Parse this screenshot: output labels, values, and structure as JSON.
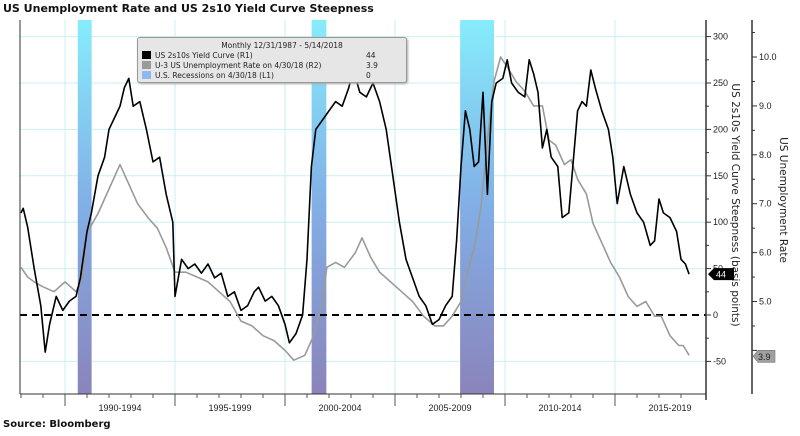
{
  "title": "US Unemployment Rate and US 2s10 Yield Curve Steepness",
  "source": "Source: Bloomberg",
  "legend": {
    "header": "Monthly 12/31/1987 - 5/14/2018",
    "entries": [
      {
        "label": "US 2s10s Yield Curve (R1)",
        "value": "44",
        "color": "#000000"
      },
      {
        "label": "U-3 US Unemployment Rate on 4/30/18 (R2)",
        "value": "3.9",
        "color": "#9a9a9a"
      },
      {
        "label": "U.S. Recessions on 4/30/18 (L1)",
        "value": "0",
        "color": "#8fb8f0"
      }
    ]
  },
  "chart_data": {
    "type": "line",
    "title": "US Unemployment Rate and US 2s10 Yield Curve Steepness",
    "x_range": [
      1988.0,
      2018.37
    ],
    "x_tick_labels": [
      "1990-1994",
      "1995-1999",
      "2000-2004",
      "2005-2009",
      "2010-2014",
      "2015-2019"
    ],
    "y1": {
      "label": "US 2s10s Yield Curve Steepness (basis points)",
      "range": [
        -85,
        318
      ],
      "ticks": [
        -50,
        0,
        50,
        100,
        150,
        200,
        250,
        300
      ],
      "tick_labels": [
        "-50",
        "0",
        "50",
        "100",
        "150",
        "200",
        "250",
        "300"
      ]
    },
    "y2": {
      "label": "US Unemployment Rate",
      "range": [
        3.4,
        11.3
      ],
      "ticks": [
        4,
        5,
        6,
        7,
        8,
        9,
        10
      ],
      "tick_labels": [
        "4.0",
        "5.0",
        "6.0",
        "7.0",
        "8.0",
        "9.0",
        "10.0"
      ]
    },
    "grid": true,
    "reference_line": {
      "axis": "y1",
      "value": 0,
      "style": "dashed"
    },
    "recessions": [
      [
        1990.58,
        1991.21
      ],
      [
        2001.21,
        2001.88
      ],
      [
        2007.96,
        2009.5
      ]
    ],
    "series": [
      {
        "name": "US 2s10s Yield Curve (R1)",
        "axis": "y1",
        "color": "#000000",
        "last_value": "44",
        "x": [
          1988.0,
          1988.1,
          1988.3,
          1988.6,
          1988.9,
          1989.1,
          1989.3,
          1989.6,
          1989.9,
          1990.2,
          1990.5,
          1990.7,
          1991.0,
          1991.2,
          1991.5,
          1991.8,
          1992.0,
          1992.3,
          1992.5,
          1992.7,
          1992.9,
          1993.1,
          1993.4,
          1993.7,
          1994.0,
          1994.3,
          1994.6,
          1994.9,
          1995.0,
          1995.3,
          1995.6,
          1995.9,
          1996.2,
          1996.5,
          1996.8,
          1997.1,
          1997.4,
          1997.7,
          1998.0,
          1998.3,
          1998.6,
          1998.8,
          1999.1,
          1999.4,
          1999.7,
          2000.0,
          2000.2,
          2000.5,
          2000.8,
          2001.0,
          2001.2,
          2001.4,
          2001.7,
          2002.0,
          2002.3,
          2002.6,
          2002.9,
          2003.1,
          2003.4,
          2003.7,
          2004.0,
          2004.3,
          2004.6,
          2004.9,
          2005.2,
          2005.5,
          2005.8,
          2006.1,
          2006.4,
          2006.7,
          2007.0,
          2007.3,
          2007.6,
          2007.8,
          2008.0,
          2008.2,
          2008.4,
          2008.6,
          2008.8,
          2009.0,
          2009.2,
          2009.4,
          2009.6,
          2009.9,
          2010.1,
          2010.3,
          2010.6,
          2010.9,
          2011.1,
          2011.3,
          2011.5,
          2011.7,
          2011.9,
          2012.1,
          2012.4,
          2012.6,
          2012.9,
          2013.1,
          2013.3,
          2013.5,
          2013.7,
          2013.9,
          2014.1,
          2014.4,
          2014.7,
          2014.9,
          2015.1,
          2015.4,
          2015.7,
          2016.0,
          2016.3,
          2016.6,
          2016.8,
          2017.0,
          2017.2,
          2017.5,
          2017.8,
          2018.0,
          2018.2,
          2018.37
        ],
        "y": [
          110,
          115,
          95,
          50,
          10,
          -40,
          -10,
          20,
          5,
          15,
          20,
          40,
          90,
          110,
          150,
          170,
          200,
          215,
          225,
          245,
          255,
          225,
          230,
          200,
          165,
          170,
          130,
          100,
          20,
          60,
          50,
          55,
          45,
          55,
          40,
          45,
          20,
          25,
          5,
          10,
          25,
          30,
          15,
          20,
          10,
          -10,
          -30,
          -20,
          0,
          60,
          160,
          200,
          210,
          220,
          230,
          225,
          245,
          265,
          240,
          235,
          250,
          230,
          200,
          150,
          100,
          60,
          40,
          20,
          10,
          -10,
          -5,
          10,
          20,
          80,
          160,
          220,
          200,
          160,
          165,
          240,
          130,
          230,
          250,
          255,
          275,
          250,
          240,
          235,
          275,
          260,
          240,
          180,
          200,
          170,
          160,
          105,
          110,
          165,
          220,
          230,
          225,
          264,
          245,
          220,
          200,
          170,
          120,
          160,
          130,
          110,
          100,
          75,
          80,
          125,
          110,
          105,
          90,
          60,
          55,
          44
        ]
      },
      {
        "name": "U-3 US Unemployment Rate on 4/30/18 (R2)",
        "axis": "y2",
        "color": "#9a9a9a",
        "last_value": "3.9",
        "x": [
          1988.0,
          1988.3,
          1988.6,
          1989.0,
          1989.5,
          1990.0,
          1990.5,
          1990.8,
          1991.0,
          1991.5,
          1992.0,
          1992.5,
          1992.9,
          1993.3,
          1993.8,
          1994.2,
          1994.6,
          1995.0,
          1995.5,
          1996.0,
          1996.5,
          1997.0,
          1997.5,
          1998.0,
          1998.5,
          1999.0,
          1999.5,
          2000.0,
          2000.4,
          2000.9,
          2001.3,
          2001.7,
          2001.9,
          2002.3,
          2002.7,
          2003.2,
          2003.5,
          2003.9,
          2004.3,
          2004.8,
          2005.3,
          2005.8,
          2006.3,
          2006.8,
          2007.2,
          2007.6,
          2008.0,
          2008.3,
          2008.6,
          2008.9,
          2009.2,
          2009.5,
          2009.8,
          2010.1,
          2010.5,
          2010.9,
          2011.3,
          2011.7,
          2012.0,
          2012.3,
          2012.7,
          2013.0,
          2013.3,
          2013.7,
          2014.0,
          2014.4,
          2014.8,
          2015.2,
          2015.6,
          2016.0,
          2016.4,
          2016.8,
          2017.1,
          2017.5,
          2017.9,
          2018.1,
          2018.37
        ],
        "y": [
          5.7,
          5.5,
          5.4,
          5.3,
          5.2,
          5.4,
          5.2,
          5.5,
          6.4,
          6.8,
          7.3,
          7.8,
          7.4,
          7.0,
          6.7,
          6.5,
          6.1,
          5.6,
          5.6,
          5.5,
          5.4,
          5.2,
          5.0,
          4.6,
          4.5,
          4.3,
          4.2,
          4.0,
          3.8,
          3.9,
          4.3,
          5.0,
          5.7,
          5.8,
          5.7,
          6.0,
          6.3,
          5.9,
          5.6,
          5.4,
          5.2,
          5.0,
          4.7,
          4.5,
          4.5,
          4.7,
          5.0,
          5.6,
          6.1,
          6.9,
          8.3,
          9.5,
          10.0,
          9.8,
          9.5,
          9.3,
          9.0,
          9.0,
          8.3,
          8.2,
          7.8,
          7.9,
          7.5,
          7.2,
          6.6,
          6.2,
          5.8,
          5.5,
          5.1,
          4.9,
          5.0,
          4.7,
          4.7,
          4.3,
          4.1,
          4.1,
          3.9
        ]
      }
    ]
  }
}
